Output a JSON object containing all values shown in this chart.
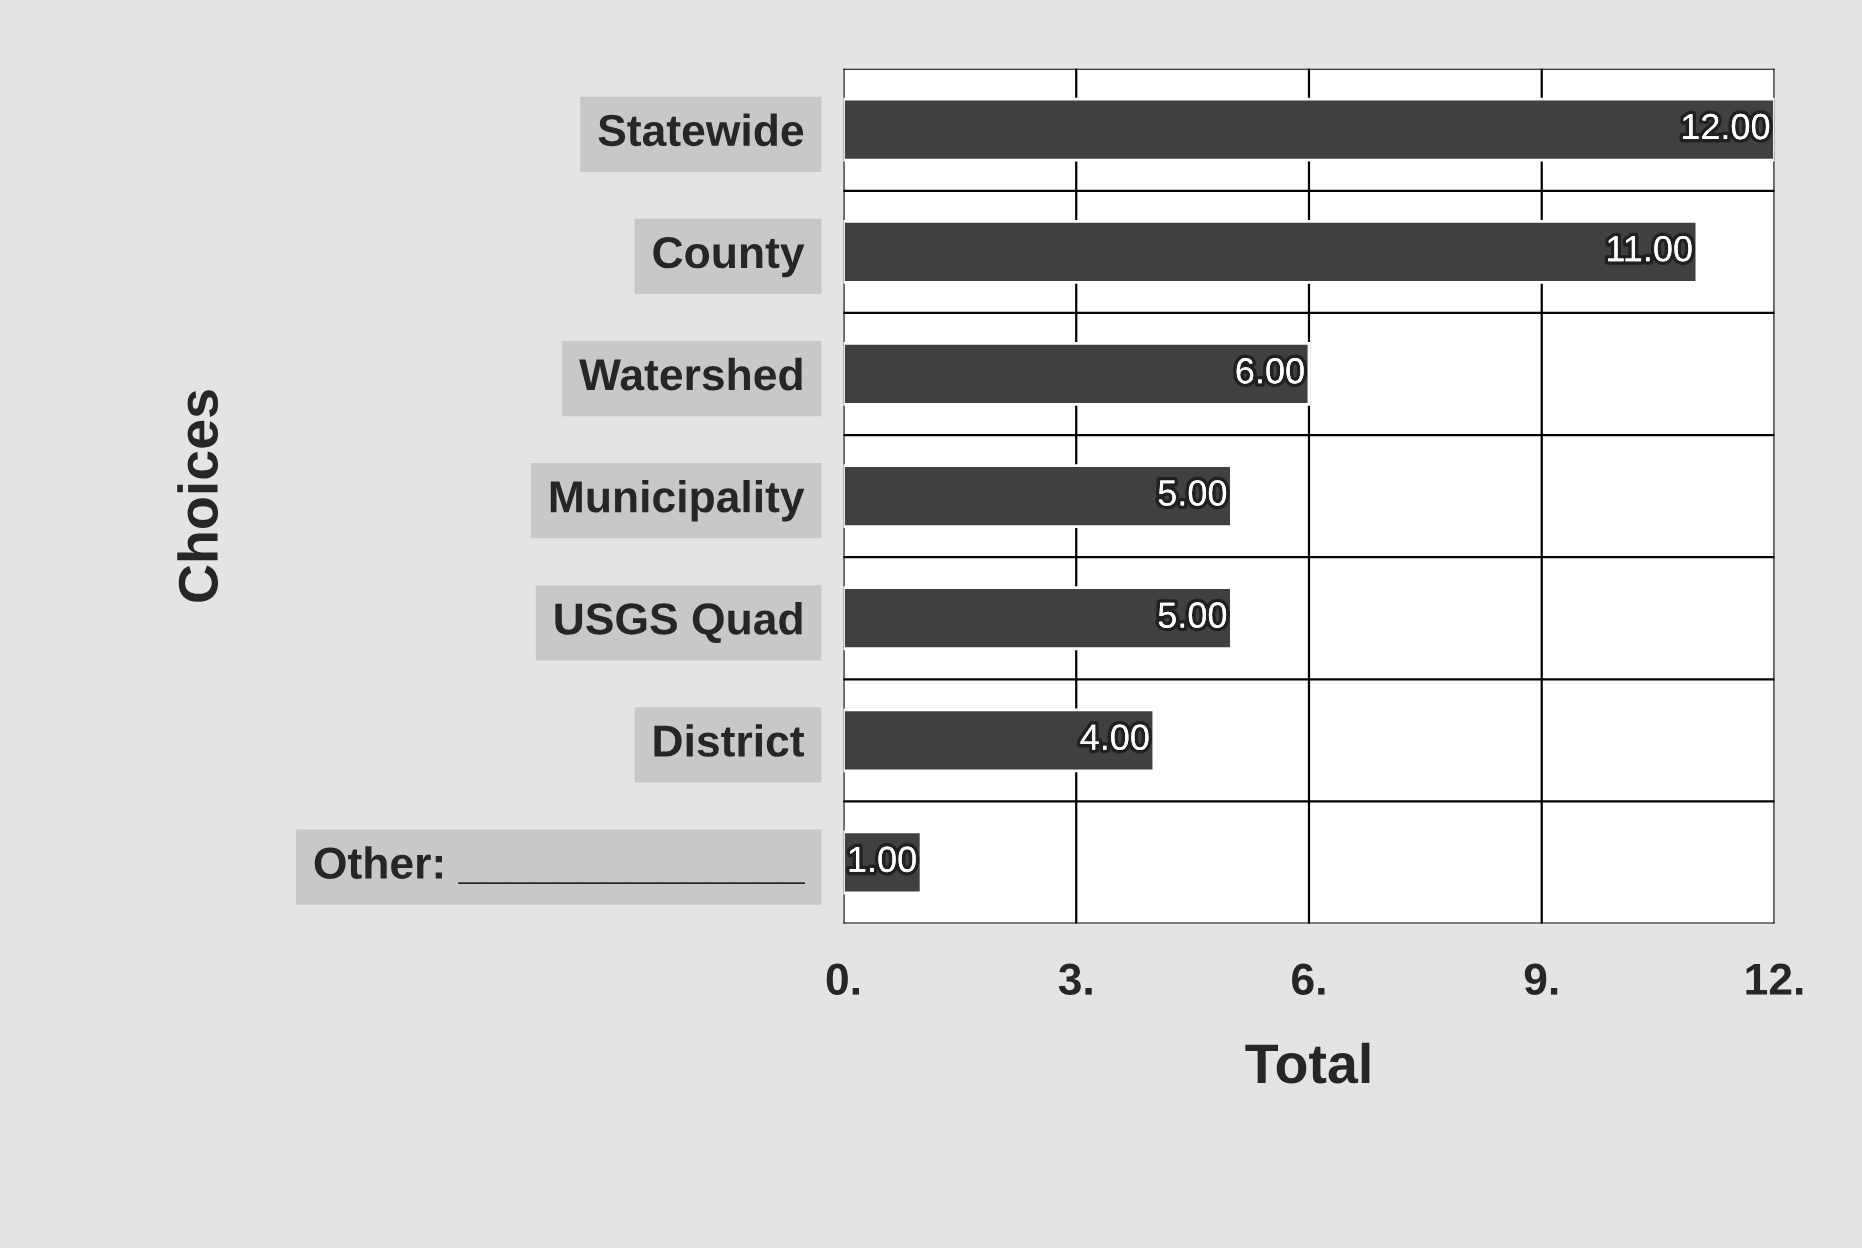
{
  "chart_data": {
    "type": "bar",
    "orientation": "horizontal",
    "xlabel": "Total",
    "ylabel": "Choices",
    "categories": [
      "Statewide",
      "County",
      "Watershed",
      "Municipality",
      "USGS Quad",
      "District",
      "Other: ______________"
    ],
    "values": [
      12,
      11,
      6,
      5,
      5,
      4,
      1
    ],
    "value_labels": [
      "12.00",
      "11.00",
      "6.00",
      "5.00",
      "5.00",
      "4.00",
      "1.00"
    ],
    "color": "#404040",
    "xlim": [
      0,
      12
    ],
    "xticks": [
      {
        "value": 0,
        "label": "0."
      },
      {
        "value": 3,
        "label": "3."
      },
      {
        "value": 6,
        "label": "6."
      },
      {
        "value": 9,
        "label": "9."
      },
      {
        "value": 12,
        "label": "12."
      }
    ],
    "grid": true
  }
}
